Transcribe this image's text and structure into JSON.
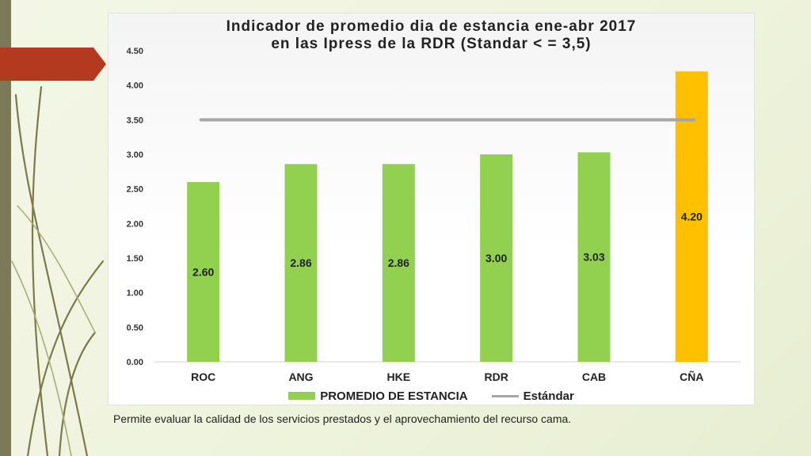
{
  "chart_data": {
    "type": "bar",
    "title_lines": [
      "Indicador de promedio dia de estancia ene-abr 2017",
      "en las Ipress de la RDR (Standar < = 3,5)"
    ],
    "categories": [
      "ROC",
      "ANG",
      "HKE",
      "RDR",
      "CAB",
      "CÑA"
    ],
    "series": [
      {
        "name": "PROMEDIO DE ESTANCIA",
        "values": [
          2.6,
          2.86,
          2.86,
          3.0,
          3.03,
          4.2
        ],
        "data_labels": [
          "2.60",
          "2.86",
          "2.86",
          "3.00",
          "3.03",
          "4.20"
        ],
        "color": "#92d050",
        "highlight_color": "#ffc000",
        "highlight_index": 5
      },
      {
        "name": "Estándar",
        "type": "line",
        "value": 3.5,
        "color": "#a6a6a6"
      }
    ],
    "ylim": [
      0,
      4.5
    ],
    "yticks": [
      "0.00",
      "0.50",
      "1.00",
      "1.50",
      "2.00",
      "2.50",
      "3.00",
      "3.50",
      "4.00",
      "4.50"
    ],
    "grid": false,
    "legend_position": "bottom"
  },
  "caption": "Permite evaluar la calidad de los servicios prestados y el aprovechamiento del recurso cama."
}
